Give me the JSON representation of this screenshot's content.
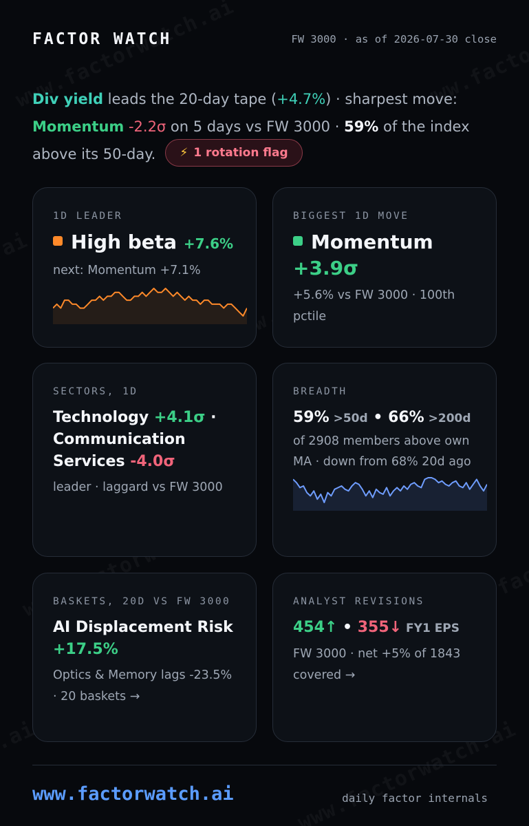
{
  "watermark": "www.factorwatch.ai",
  "header": {
    "brand": "FACTOR WATCH",
    "as_of": "FW 3000 · as of 2026-07-30 close"
  },
  "summary": {
    "leader_name": "Div yield",
    "t1": " leads the 20-day tape (",
    "leader_value": "+4.7%",
    "t2": ") · sharpest move: ",
    "mover_name": "Momentum",
    "mover_value": " -2.2σ",
    "t3": " on 5 days vs FW 3000 · ",
    "breadth_pct": "59%",
    "t4": " of the index above its 50-day.",
    "flag_icon": "⚡",
    "flag_label": "1 rotation flag"
  },
  "colors": {
    "leader": "#3fd0b8",
    "positive": "#3ccf87",
    "negative": "#f0647a",
    "high_beta_dot": "#ff8a2a",
    "momentum_dot": "#3ccf87",
    "breadth_line": "#6f9dff",
    "leader_line": "#ff8a2a"
  },
  "cards": {
    "leader": {
      "label": "1D LEADER",
      "name": "High beta",
      "value": "+7.6%",
      "next": "next: Momentum +7.1%",
      "spark": [
        3,
        4,
        3,
        5,
        5,
        4,
        4,
        3,
        3,
        4,
        5,
        5,
        6,
        5,
        6,
        6,
        7,
        7,
        6,
        5,
        5,
        6,
        6,
        7,
        6,
        7,
        8,
        7,
        7,
        8,
        7,
        6,
        7,
        6,
        5,
        6,
        5,
        5,
        4,
        5,
        5,
        4,
        4,
        4,
        3,
        4,
        4,
        3,
        2,
        1,
        3
      ]
    },
    "mover": {
      "label": "BIGGEST 1D MOVE",
      "name": "Momentum",
      "value": "+3.9σ",
      "desc": "+5.6% vs FW 3000 · 100th pctile"
    },
    "sectors": {
      "label": "SECTORS, 1D",
      "leader": "Technology",
      "leader_value": " +4.1σ",
      "sep": " ·",
      "laggard": "Communication Services",
      "laggard_value": " -4.0σ",
      "desc": "leader · laggard vs FW 3000"
    },
    "breadth": {
      "label": "BREADTH",
      "v50": "59%",
      "v50_label": " >50d",
      "sep": " • ",
      "v200": "66%",
      "v200_label": " >200d",
      "desc": "of 2908 members above own MA · down from 68% 20d ago",
      "spark": [
        62,
        60,
        57,
        58,
        54,
        52,
        55,
        50,
        53,
        48,
        54,
        52,
        56,
        57,
        58,
        56,
        55,
        58,
        60,
        59,
        56,
        52,
        55,
        51,
        56,
        54,
        53,
        57,
        52,
        55,
        57,
        55,
        58,
        56,
        59,
        60,
        58,
        57,
        62,
        63,
        63,
        62,
        60,
        61,
        59,
        58,
        60,
        61,
        58,
        57,
        60,
        56,
        59,
        62,
        58,
        55,
        59
      ]
    },
    "baskets": {
      "label": "BASKETS, 20D VS FW 3000",
      "name": "AI Displacement Risk",
      "value": "+17.5%",
      "desc": "Optics & Memory lags -23.5% · 20 baskets →"
    },
    "revisions": {
      "label": "ANALYST REVISIONS",
      "up": "454↑",
      "sep": " • ",
      "down": "355↓",
      "tag": " FY1 EPS",
      "desc": "FW 3000 · net +5% of 1843 covered →"
    }
  },
  "footer": {
    "url": "www.factorwatch.ai",
    "tagline": "daily factor internals"
  }
}
